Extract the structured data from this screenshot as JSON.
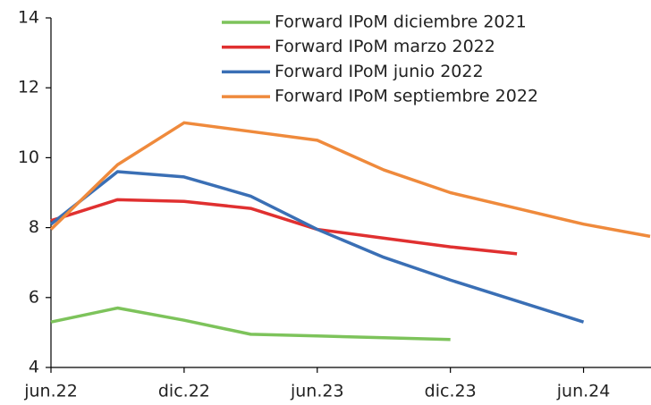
{
  "chart_data": {
    "type": "line",
    "categories": [
      "jun.22",
      null,
      "dic.22",
      null,
      "jun.23",
      null,
      "dic.23",
      null,
      "jun.24",
      null
    ],
    "series": [
      {
        "name": "Forward IPoM diciembre 2021",
        "color": "#7dc35b",
        "values": [
          5.3,
          5.7,
          5.35,
          4.95,
          4.9,
          4.85,
          4.8,
          null,
          null,
          null
        ]
      },
      {
        "name": "Forward IPoM marzo 2022",
        "color": "#e03030",
        "values": [
          8.2,
          8.8,
          8.75,
          8.55,
          7.95,
          7.7,
          7.45,
          7.25,
          null,
          null
        ]
      },
      {
        "name": "Forward IPoM junio 2022",
        "color": "#3a6fb5",
        "values": [
          8.1,
          9.6,
          9.45,
          8.9,
          7.95,
          7.15,
          6.5,
          5.9,
          5.3,
          null
        ]
      },
      {
        "name": "Forward IPoM septiembre 2022",
        "color": "#ef8a3c",
        "values": [
          7.95,
          9.8,
          11.0,
          10.75,
          10.5,
          9.65,
          9.0,
          8.55,
          8.1,
          7.75
        ]
      }
    ],
    "ylim": [
      4,
      14
    ],
    "yticks": [
      4,
      6,
      8,
      10,
      12,
      14
    ],
    "grid": false
  }
}
